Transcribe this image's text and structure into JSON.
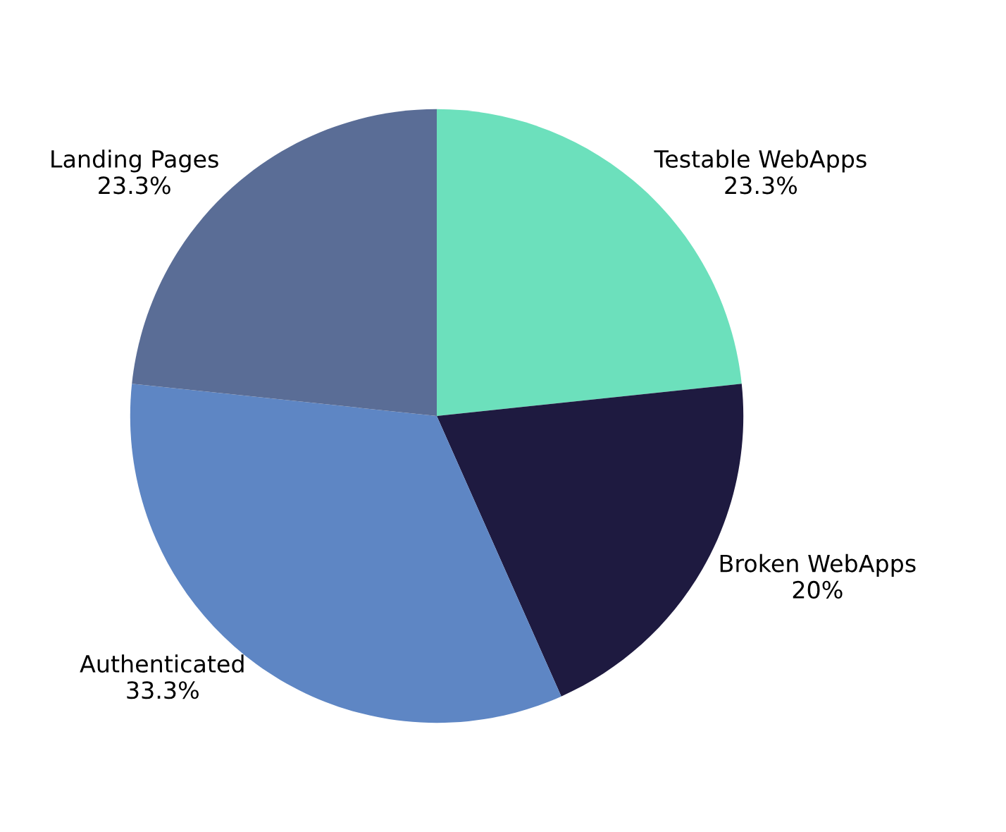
{
  "chart_data": {
    "type": "pie",
    "categories": [
      "Testable WebApps",
      "Broken WebApps",
      "Authenticated",
      "Landing Pages"
    ],
    "values": [
      23.3,
      20,
      33.3,
      23.3
    ],
    "colors": [
      "#6ce0bc",
      "#1e1a40",
      "#5e86c4",
      "#5a6d96"
    ],
    "value_labels": [
      "23.3%",
      "20%",
      "33.3%",
      "23.3%"
    ],
    "legend": false
  }
}
